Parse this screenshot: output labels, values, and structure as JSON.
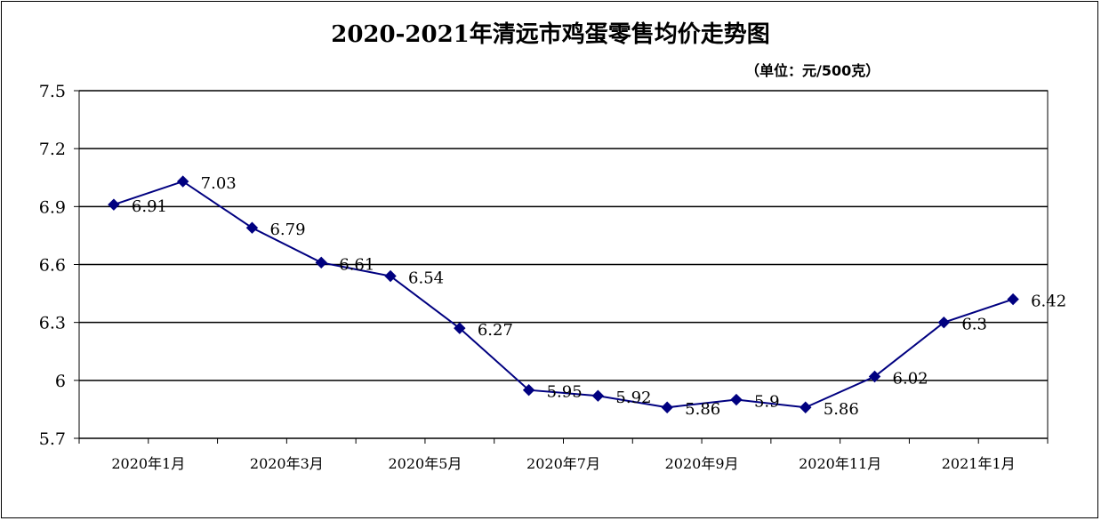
{
  "chart_data": {
    "type": "line",
    "title": "2020-2021年清远市鸡蛋零售均价走势图",
    "unit_label": "（单位：元/500克）",
    "xlabel": "",
    "ylabel": "",
    "x_tick_labels": [
      "2020年1月",
      "2020年3月",
      "2020年5月",
      "2020年7月",
      "2020年9月",
      "2020年11月",
      "2021年1月"
    ],
    "y_ticks": [
      "7.5",
      "7.2",
      "6.9",
      "6.6",
      "6.3",
      "6",
      "5.7"
    ],
    "ylim": [
      5.7,
      7.5
    ],
    "grid": true,
    "legend": "none",
    "series": [
      {
        "values": [
          6.91,
          7.03,
          6.79,
          6.61,
          6.54,
          6.27,
          5.95,
          5.92,
          5.86,
          5.9,
          5.86,
          6.02,
          6.3,
          6.42
        ],
        "data_labels": [
          "6.91",
          "7.03",
          "6.79",
          "6.61",
          "6.54",
          "6.27",
          "5.95",
          "5.92",
          "5.86",
          "5.9",
          "5.86",
          "6.02",
          "6.3",
          "6.42"
        ],
        "color": "#000080"
      }
    ]
  }
}
